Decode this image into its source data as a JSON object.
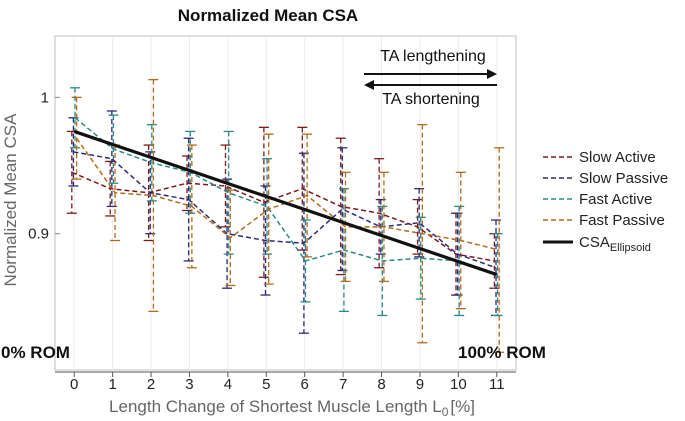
{
  "chart_data": {
    "type": "line",
    "title": "Normalized Mean CSA",
    "xlabel_main": "Length Change of Shortest Muscle Length L",
    "xlabel_sub": "0",
    "xlabel_unit": "[%]",
    "ylabel": "Normalized Mean CSA",
    "xlim": [
      -0.5,
      11.5
    ],
    "ylim": [
      0.8,
      1.045
    ],
    "x": [
      0,
      1,
      2,
      3,
      4,
      5,
      6,
      7,
      8,
      9,
      10,
      11
    ],
    "x_tick_labels": [
      "0",
      "1",
      "2",
      "3",
      "4",
      "5",
      "6",
      "7",
      "8",
      "9",
      "10",
      "11"
    ],
    "y_ticks": [
      0.9,
      1.0
    ],
    "y_tick_labels": [
      "0.9",
      "1"
    ],
    "series": [
      {
        "name": "Slow Active",
        "color": "#7a1c1c",
        "values": [
          0.945,
          0.933,
          0.93,
          0.937,
          0.935,
          0.923,
          0.933,
          0.92,
          0.915,
          0.905,
          0.885,
          0.88
        ],
        "errors": [
          0.03,
          0.02,
          0.035,
          0.02,
          0.03,
          0.055,
          0.045,
          0.05,
          0.04,
          0.02,
          0.03,
          0.02
        ]
      },
      {
        "name": "Slow Passive",
        "color": "#2b2b7a",
        "values": [
          0.96,
          0.955,
          0.93,
          0.925,
          0.9,
          0.895,
          0.893,
          0.918,
          0.905,
          0.908,
          0.885,
          0.875
        ],
        "errors": [
          0.025,
          0.035,
          0.03,
          0.045,
          0.04,
          0.04,
          0.066,
          0.045,
          0.02,
          0.025,
          0.03,
          0.035
        ]
      },
      {
        "name": "Fast Active",
        "color": "#2a8a8a",
        "values": [
          0.985,
          0.962,
          0.952,
          0.945,
          0.93,
          0.92,
          0.88,
          0.888,
          0.88,
          0.882,
          0.88,
          0.87
        ],
        "errors": [
          0.022,
          0.025,
          0.028,
          0.03,
          0.045,
          0.035,
          0.03,
          0.045,
          0.04,
          0.03,
          0.04,
          0.03
        ]
      },
      {
        "name": "Fast Passive",
        "color": "#b26b1a",
        "values": [
          0.97,
          0.93,
          0.928,
          0.92,
          0.897,
          0.918,
          0.928,
          0.905,
          0.905,
          0.9,
          0.895,
          0.888
        ],
        "errors": [
          0.03,
          0.035,
          0.085,
          0.045,
          0.035,
          0.055,
          0.045,
          0.04,
          0.04,
          0.08,
          0.05,
          0.075
        ]
      }
    ],
    "trend": {
      "name": "CSA",
      "name_sub": "Ellipsoid",
      "color": "#111111",
      "x": [
        0,
        11
      ],
      "values": [
        0.975,
        0.87
      ]
    },
    "annotations": {
      "lengthening": "TA lengthening",
      "shortening": "TA shortening",
      "rom_start": "0% ROM",
      "rom_end": "100% ROM"
    },
    "legend_position": "right"
  }
}
